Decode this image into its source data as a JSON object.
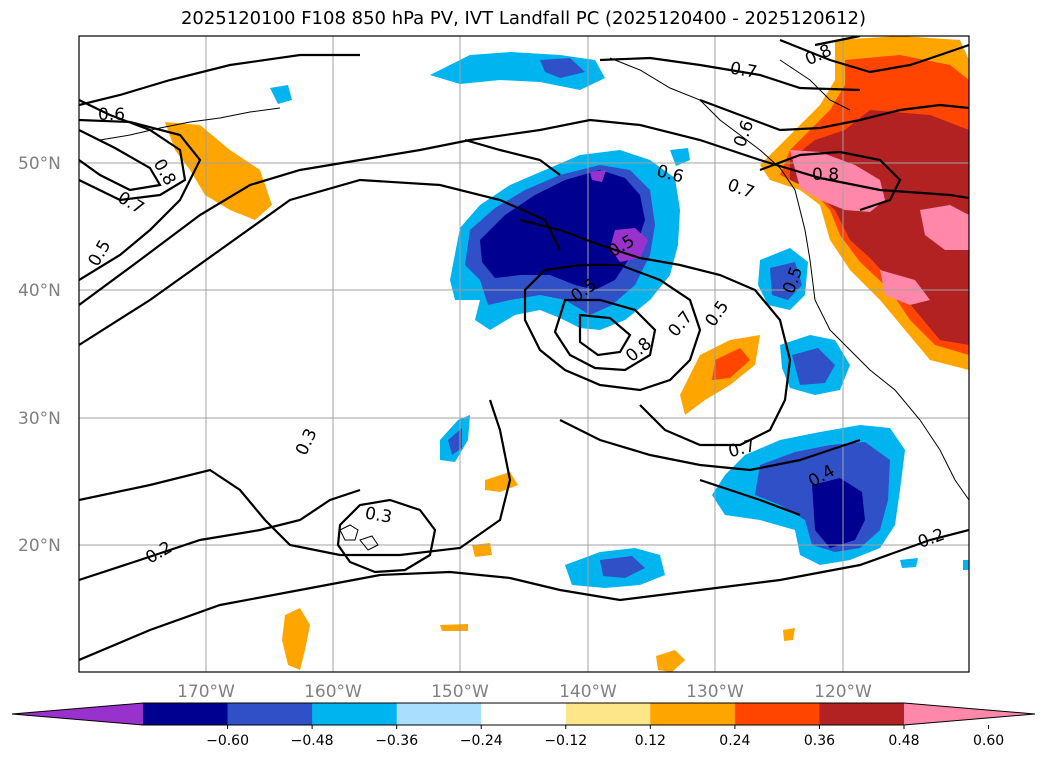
{
  "title": "2025120100 F108 850 hPa PV, IVT Landfall PC (2025120400 - 2025120612)",
  "map": {
    "lat_labels": [
      "50°N",
      "40°N",
      "30°N",
      "20°N"
    ],
    "lon_labels": [
      "170°W",
      "160°W",
      "150°W",
      "140°W",
      "130°W",
      "120°W"
    ],
    "contour_labels": [
      "0.6",
      "0.8",
      "0.7",
      "0.5",
      "0.3",
      "0.2",
      "0.3",
      "0.5",
      "0.6",
      "0.7",
      "0.8",
      "0.7",
      "0.5",
      "0.8",
      "0.7",
      "0.4",
      "0.2",
      "0.6",
      "0.7",
      "0.8",
      "0.5",
      "0.5"
    ]
  },
  "colorbar": {
    "ticks": [
      "−0.60",
      "−0.48",
      "−0.36",
      "−0.24",
      "−0.12",
      "0.12",
      "0.24",
      "0.36",
      "0.48",
      "0.60"
    ],
    "colors": [
      "#9932cc",
      "#000090",
      "#3050c8",
      "#00b4f0",
      "#aadeff",
      "#ffffff",
      "#fde68a",
      "#ffa500",
      "#ff4500",
      "#b22222",
      "#ff88aa"
    ]
  }
}
